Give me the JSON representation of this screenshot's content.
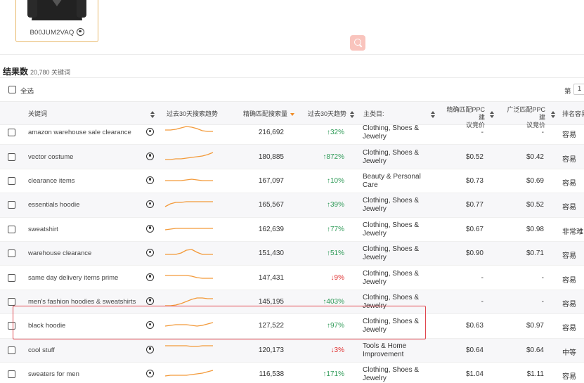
{
  "product": {
    "asin": "B00JUM2VAQ"
  },
  "results": {
    "label": "结果数",
    "count": "20,780 关键词"
  },
  "select_all_label": "全选",
  "pagination": {
    "label": "第",
    "page": "1"
  },
  "table": {
    "headers": {
      "keyword": "关键词",
      "trend": "过去30天搜索趋势",
      "volume": "精确匹配搜索量",
      "change": "过去30天趋势",
      "category": "主类目:",
      "ppc_exact": [
        "精确匹配PPC建",
        "议竞价"
      ],
      "ppc_broad": [
        "广泛匹配PPC建",
        "议竞价"
      ],
      "rank": "排名容易"
    },
    "rows": [
      {
        "keyword": "amazon warehouse sale clearance",
        "volume": "216,692",
        "change": "32%",
        "dir": "up",
        "category": "Clothing, Shoes & Jewelry",
        "ppc_exact": "-",
        "ppc_broad": "-",
        "rank": "容易",
        "trend": [
          6,
          6,
          5,
          3,
          1,
          2,
          4,
          7,
          8,
          8
        ]
      },
      {
        "keyword": "vector costume",
        "volume": "180,885",
        "change": "872%",
        "dir": "up",
        "category": "Clothing, Shoes & Jewelry",
        "ppc_exact": "$0.52",
        "ppc_broad": "$0.42",
        "rank": "容易",
        "trend": [
          13,
          13,
          12,
          12,
          11,
          10,
          9,
          8,
          6,
          3
        ]
      },
      {
        "keyword": "clearance items",
        "volume": "167,097",
        "change": "10%",
        "dir": "up",
        "category": "Beauty & Personal Care",
        "ppc_exact": "$0.73",
        "ppc_broad": "$0.69",
        "rank": "容易",
        "trend": [
          9,
          9,
          9,
          9,
          8,
          7,
          8,
          9,
          9,
          9
        ]
      },
      {
        "keyword": "essentials hoodie",
        "volume": "165,567",
        "change": "39%",
        "dir": "up",
        "category": "Clothing, Shoes & Jewelry",
        "ppc_exact": "$0.77",
        "ppc_broad": "$0.52",
        "rank": "容易",
        "trend": [
          12,
          8,
          6,
          6,
          5,
          5,
          5,
          5,
          5,
          5
        ]
      },
      {
        "keyword": "sweatshirt",
        "volume": "162,639",
        "change": "77%",
        "dir": "up",
        "category": "Clothing, Shoes & Jewelry",
        "ppc_exact": "$0.67",
        "ppc_broad": "$0.98",
        "rank": "非常难",
        "trend": [
          10,
          9,
          8,
          8,
          8,
          8,
          8,
          8,
          8,
          8
        ]
      },
      {
        "keyword": "warehouse clearance",
        "volume": "151,430",
        "change": "51%",
        "dir": "up",
        "category": "Clothing, Shoes & Jewelry",
        "ppc_exact": "$0.90",
        "ppc_broad": "$0.71",
        "rank": "容易",
        "trend": [
          11,
          11,
          11,
          9,
          5,
          4,
          8,
          11,
          11,
          11
        ]
      },
      {
        "keyword": "same day delivery items prime",
        "volume": "147,431",
        "change": "9%",
        "dir": "down",
        "category": "Clothing, Shoes & Jewelry",
        "ppc_exact": "-",
        "ppc_broad": "-",
        "rank": "容易",
        "trend": [
          6,
          6,
          6,
          6,
          6,
          7,
          9,
          10,
          10,
          10
        ]
      },
      {
        "keyword": "men's fashion hoodies & sweatshirts",
        "volume": "145,195",
        "change": "403%",
        "dir": "up",
        "category": "Clothing, Shoes & Jewelry",
        "ppc_exact": "-",
        "ppc_broad": "-",
        "rank": "容易",
        "trend": [
          15,
          15,
          14,
          12,
          9,
          6,
          4,
          4,
          5,
          5
        ]
      },
      {
        "keyword": "black hoodie",
        "volume": "127,522",
        "change": "97%",
        "dir": "up",
        "category": "Clothing, Shoes & Jewelry",
        "ppc_exact": "$0.63",
        "ppc_broad": "$0.97",
        "rank": "容易",
        "trend": [
          10,
          9,
          8,
          8,
          8,
          9,
          10,
          9,
          7,
          5
        ]
      },
      {
        "keyword": "cool stuff",
        "volume": "120,173",
        "change": "3%",
        "dir": "down",
        "category": "Tools & Home Improvement",
        "ppc_exact": "$0.64",
        "ppc_broad": "$0.64",
        "rank": "中等",
        "trend": [
          3,
          3,
          3,
          3,
          3,
          4,
          4,
          3,
          3,
          3
        ]
      },
      {
        "keyword": "sweaters for men",
        "volume": "116,538",
        "change": "171%",
        "dir": "up",
        "category": "Clothing, Shoes & Jewelry",
        "ppc_exact": "$1.04",
        "ppc_broad": "$1.11",
        "rank": "容易",
        "trend": [
          12,
          11,
          11,
          11,
          11,
          10,
          9,
          8,
          6,
          4
        ]
      }
    ]
  },
  "colors": {
    "accent": "#f08a24",
    "trend_line": "#f39a3a",
    "up": "#2e9a57",
    "down": "#e03030",
    "highlight": "#e0464e"
  }
}
